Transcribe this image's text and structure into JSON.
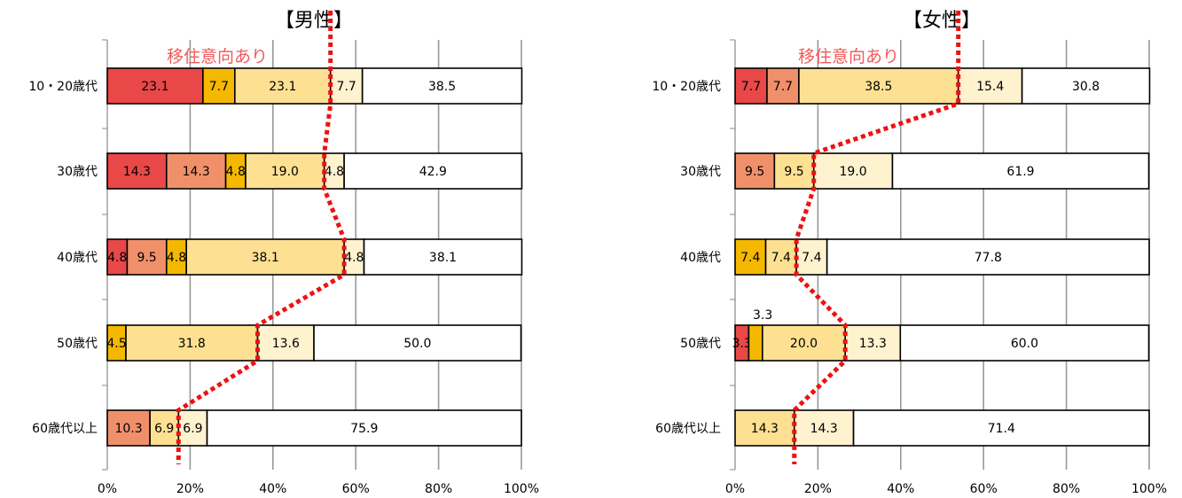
{
  "chart_data": [
    {
      "type": "bar",
      "stacked": true,
      "orientation": "horizontal",
      "title": "【男性】",
      "annotation": "移住意向あり",
      "categories": [
        "10・20歳代",
        "30歳代",
        "40歳代",
        "50歳代",
        "60歳代以上"
      ],
      "xlim": [
        0,
        100
      ],
      "x_ticks": [
        "0%",
        "20%",
        "40%",
        "60%",
        "80%",
        "100%"
      ],
      "grid": true,
      "series": [
        {
          "color": "#e84848",
          "values": [
            23.1,
            14.3,
            4.8,
            0,
            0
          ]
        },
        {
          "color": "#f0906a",
          "values": [
            0,
            14.3,
            9.5,
            0,
            10.3
          ]
        },
        {
          "color": "#f5b800",
          "values": [
            7.7,
            4.8,
            4.8,
            4.5,
            0
          ]
        },
        {
          "color": "#fde092",
          "values": [
            23.1,
            19.0,
            38.1,
            31.8,
            6.9
          ]
        },
        {
          "color": "#fff2cf",
          "values": [
            7.7,
            4.8,
            4.8,
            13.6,
            6.9
          ]
        },
        {
          "color": "#ffffff",
          "values": [
            38.5,
            42.9,
            38.1,
            50.0,
            75.9
          ]
        }
      ],
      "intent_line": [
        53.9,
        52.4,
        57.2,
        36.3,
        17.2
      ]
    },
    {
      "type": "bar",
      "stacked": true,
      "orientation": "horizontal",
      "title": "【女性】",
      "annotation": "移住意向あり",
      "categories": [
        "10・20歳代",
        "30歳代",
        "40歳代",
        "50歳代",
        "60歳代以上"
      ],
      "xlim": [
        0,
        100
      ],
      "x_ticks": [
        "0%",
        "20%",
        "40%",
        "60%",
        "80%",
        "100%"
      ],
      "grid": true,
      "series": [
        {
          "color": "#e84848",
          "values": [
            7.7,
            0,
            0,
            3.3,
            0
          ]
        },
        {
          "color": "#f0906a",
          "values": [
            7.7,
            9.5,
            0,
            0,
            0
          ]
        },
        {
          "color": "#f5b800",
          "values": [
            0,
            0,
            7.4,
            3.3,
            0
          ]
        },
        {
          "color": "#fde092",
          "values": [
            38.5,
            9.5,
            7.4,
            20.0,
            14.3
          ]
        },
        {
          "color": "#fff2cf",
          "values": [
            15.4,
            19.0,
            7.4,
            13.3,
            14.3
          ]
        },
        {
          "color": "#ffffff",
          "values": [
            30.8,
            61.9,
            77.8,
            60.0,
            71.4
          ]
        }
      ],
      "intent_line": [
        53.9,
        19.0,
        14.8,
        26.6,
        14.3
      ]
    }
  ]
}
